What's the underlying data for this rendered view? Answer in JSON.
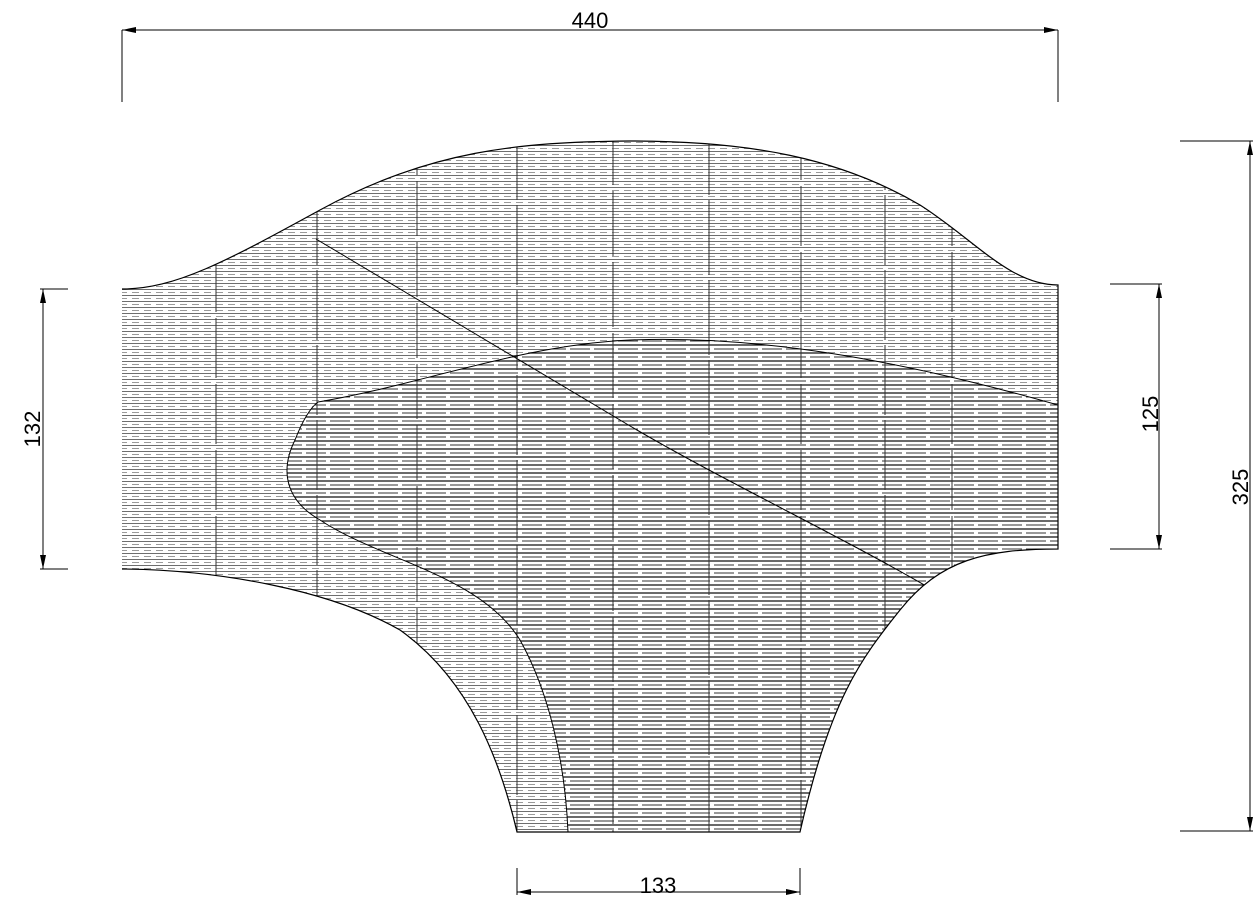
{
  "drawing": {
    "type": "technical-dimension-drawing",
    "dimensions": {
      "overall_width": "440",
      "left_edge_height": "132",
      "right_edge_height": "125",
      "overall_height": "325",
      "bottom_width": "133"
    },
    "colors": {
      "line": "#000000",
      "background": "#ffffff",
      "outer_hatch": "#8a8a8a",
      "inner_hatch": "#000000"
    }
  }
}
